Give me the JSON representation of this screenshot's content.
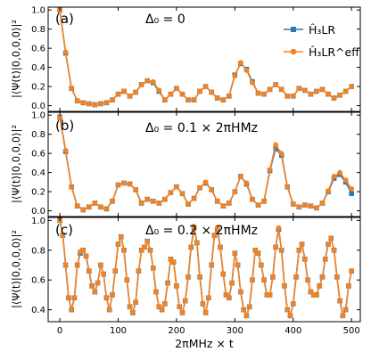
{
  "chart_data": [
    {
      "type": "line",
      "panel_label": "(a)",
      "annotation": "Δ₀ = 0",
      "ylabel": "|⟨Ψ(t)|0,0,0,0⟩|²",
      "xlim": [
        -20,
        515
      ],
      "ylim": [
        -0.06,
        1.03
      ],
      "yticks": [
        0.0,
        0.2,
        0.4,
        0.6,
        0.8,
        1.0
      ],
      "ytick_labels": [
        "0.0",
        "0.2",
        "0.4",
        "0.6",
        "0.8",
        "1.0"
      ],
      "legend": {
        "position": "top-right",
        "entries": [
          "Ĥ₃LR",
          "Ĥ₃LR^eff"
        ]
      },
      "x": [
        0,
        10,
        20,
        30,
        40,
        50,
        60,
        70,
        80,
        90,
        100,
        110,
        120,
        130,
        140,
        150,
        160,
        170,
        180,
        190,
        200,
        210,
        220,
        230,
        240,
        250,
        260,
        270,
        280,
        290,
        300,
        310,
        320,
        330,
        340,
        350,
        360,
        370,
        380,
        390,
        400,
        410,
        420,
        430,
        440,
        450,
        460,
        470,
        480,
        490,
        500
      ],
      "series": [
        {
          "name": "Ĥ₃LR",
          "color": "#2e78ae",
          "marker": "square",
          "values": [
            1.0,
            0.55,
            0.18,
            0.05,
            0.03,
            0.02,
            0.01,
            0.02,
            0.03,
            0.06,
            0.12,
            0.15,
            0.1,
            0.14,
            0.22,
            0.26,
            0.24,
            0.15,
            0.06,
            0.12,
            0.18,
            0.12,
            0.06,
            0.06,
            0.15,
            0.2,
            0.14,
            0.08,
            0.06,
            0.1,
            0.32,
            0.44,
            0.38,
            0.25,
            0.13,
            0.12,
            0.17,
            0.22,
            0.17,
            0.1,
            0.1,
            0.18,
            0.16,
            0.12,
            0.15,
            0.17,
            0.12,
            0.08,
            0.11,
            0.15,
            0.2
          ]
        },
        {
          "name": "Ĥ₃LR^eff",
          "color": "#f5821f",
          "marker": "circle",
          "values": [
            1.0,
            0.56,
            0.18,
            0.05,
            0.03,
            0.02,
            0.01,
            0.02,
            0.03,
            0.06,
            0.12,
            0.15,
            0.1,
            0.14,
            0.22,
            0.26,
            0.25,
            0.16,
            0.06,
            0.12,
            0.18,
            0.12,
            0.06,
            0.06,
            0.15,
            0.2,
            0.14,
            0.08,
            0.06,
            0.1,
            0.31,
            0.45,
            0.37,
            0.24,
            0.13,
            0.12,
            0.17,
            0.22,
            0.17,
            0.1,
            0.1,
            0.18,
            0.16,
            0.12,
            0.15,
            0.17,
            0.12,
            0.08,
            0.11,
            0.15,
            0.2
          ]
        }
      ]
    },
    {
      "type": "line",
      "panel_label": "(b)",
      "annotation": "Δ₀ = 0.1 × 2πHMz",
      "ylabel": "|⟨Ψ(t)|0,0,0,0⟩|²",
      "xlim": [
        -20,
        515
      ],
      "ylim": [
        -0.06,
        1.03
      ],
      "yticks": [
        0.0,
        0.2,
        0.4,
        0.6,
        0.8,
        1.0
      ],
      "ytick_labels": [
        "0.0",
        "0.2",
        "0.4",
        "0.6",
        "0.8",
        "1.0"
      ],
      "x": [
        0,
        10,
        20,
        30,
        40,
        50,
        60,
        70,
        80,
        90,
        100,
        110,
        120,
        130,
        140,
        150,
        160,
        170,
        180,
        190,
        200,
        210,
        220,
        230,
        240,
        250,
        260,
        270,
        280,
        290,
        300,
        310,
        320,
        330,
        340,
        350,
        360,
        370,
        380,
        390,
        400,
        410,
        420,
        430,
        440,
        450,
        460,
        470,
        480,
        490,
        500
      ],
      "series": [
        {
          "name": "Ĥ₃LR",
          "color": "#2e78ae",
          "marker": "square",
          "values": [
            0.98,
            0.62,
            0.25,
            0.05,
            0.01,
            0.04,
            0.08,
            0.04,
            0.02,
            0.1,
            0.27,
            0.29,
            0.28,
            0.22,
            0.08,
            0.12,
            0.1,
            0.08,
            0.12,
            0.19,
            0.25,
            0.18,
            0.07,
            0.13,
            0.24,
            0.29,
            0.22,
            0.1,
            0.05,
            0.08,
            0.2,
            0.36,
            0.28,
            0.12,
            0.06,
            0.1,
            0.42,
            0.65,
            0.58,
            0.25,
            0.07,
            0.04,
            0.06,
            0.05,
            0.03,
            0.08,
            0.2,
            0.34,
            0.38,
            0.3,
            0.18
          ]
        },
        {
          "name": "Ĥ₃LR^eff",
          "color": "#f5821f",
          "marker": "circle",
          "values": [
            0.98,
            0.63,
            0.25,
            0.05,
            0.01,
            0.04,
            0.08,
            0.04,
            0.02,
            0.1,
            0.27,
            0.29,
            0.28,
            0.22,
            0.08,
            0.12,
            0.1,
            0.08,
            0.12,
            0.19,
            0.25,
            0.18,
            0.07,
            0.13,
            0.24,
            0.3,
            0.22,
            0.1,
            0.05,
            0.08,
            0.2,
            0.36,
            0.29,
            0.12,
            0.06,
            0.1,
            0.43,
            0.69,
            0.6,
            0.25,
            0.07,
            0.04,
            0.06,
            0.05,
            0.03,
            0.08,
            0.21,
            0.36,
            0.4,
            0.32,
            0.23
          ]
        }
      ]
    },
    {
      "type": "line",
      "panel_label": "(c)",
      "annotation": "Δ₀ = 0.2 × 2πHMz",
      "ylabel": "|⟨Ψ(t)|0,0,0,0⟩|²",
      "xlabel": "2πMHz × t",
      "xlim": [
        -20,
        515
      ],
      "ylim": [
        0.32,
        1.02
      ],
      "xticks": [
        0,
        100,
        200,
        300,
        400,
        500
      ],
      "xtick_labels": [
        "0",
        "100",
        "200",
        "300",
        "400",
        "500"
      ],
      "yticks": [
        0.4,
        0.6,
        0.8,
        1.0
      ],
      "ytick_labels": [
        "0.4",
        "0.6",
        "0.8",
        "1.0"
      ],
      "x": [
        0,
        5,
        10,
        15,
        20,
        25,
        30,
        35,
        40,
        45,
        50,
        55,
        60,
        65,
        70,
        75,
        80,
        85,
        90,
        95,
        100,
        105,
        110,
        115,
        120,
        125,
        130,
        135,
        140,
        145,
        150,
        155,
        160,
        165,
        170,
        175,
        180,
        185,
        190,
        195,
        200,
        205,
        210,
        215,
        220,
        225,
        230,
        235,
        240,
        245,
        250,
        255,
        260,
        265,
        270,
        275,
        280,
        285,
        290,
        295,
        300,
        305,
        310,
        315,
        320,
        325,
        330,
        335,
        340,
        345,
        350,
        355,
        360,
        365,
        370,
        375,
        380,
        385,
        390,
        395,
        400,
        405,
        410,
        415,
        420,
        425,
        430,
        435,
        440,
        445,
        450,
        455,
        460,
        465,
        470,
        475,
        480,
        485,
        490,
        495,
        500
      ],
      "series": [
        {
          "name": "Ĥ₃LR",
          "color": "#2e78ae",
          "marker": "square",
          "values": [
            1.0,
            0.9,
            0.7,
            0.48,
            0.4,
            0.48,
            0.7,
            0.78,
            0.8,
            0.76,
            0.66,
            0.56,
            0.52,
            0.58,
            0.7,
            0.64,
            0.48,
            0.4,
            0.5,
            0.66,
            0.84,
            0.89,
            0.8,
            0.6,
            0.42,
            0.38,
            0.45,
            0.66,
            0.8,
            0.82,
            0.86,
            0.8,
            0.68,
            0.52,
            0.42,
            0.4,
            0.44,
            0.58,
            0.74,
            0.72,
            0.56,
            0.42,
            0.38,
            0.46,
            0.62,
            0.82,
            0.95,
            0.85,
            0.62,
            0.44,
            0.38,
            0.48,
            0.7,
            0.9,
            0.94,
            0.82,
            0.64,
            0.5,
            0.48,
            0.58,
            0.78,
            0.7,
            0.52,
            0.4,
            0.36,
            0.42,
            0.6,
            0.8,
            0.78,
            0.7,
            0.6,
            0.5,
            0.5,
            0.62,
            0.82,
            0.94,
            0.8,
            0.56,
            0.4,
            0.36,
            0.44,
            0.62,
            0.8,
            0.84,
            0.74,
            0.6,
            0.52,
            0.5,
            0.5,
            0.56,
            0.62,
            0.74,
            0.84,
            0.88,
            0.8,
            0.62,
            0.46,
            0.36,
            0.4,
            0.56,
            0.66
          ]
        },
        {
          "name": "Ĥ₃LR^eff",
          "color": "#f5821f",
          "marker": "circle",
          "values": [
            1.0,
            0.9,
            0.7,
            0.48,
            0.4,
            0.48,
            0.7,
            0.79,
            0.8,
            0.76,
            0.66,
            0.56,
            0.52,
            0.58,
            0.7,
            0.64,
            0.48,
            0.4,
            0.5,
            0.66,
            0.84,
            0.89,
            0.8,
            0.6,
            0.42,
            0.38,
            0.45,
            0.66,
            0.8,
            0.82,
            0.86,
            0.8,
            0.68,
            0.52,
            0.42,
            0.4,
            0.44,
            0.58,
            0.74,
            0.72,
            0.56,
            0.42,
            0.38,
            0.46,
            0.62,
            0.82,
            0.96,
            0.85,
            0.62,
            0.44,
            0.38,
            0.48,
            0.7,
            0.9,
            0.95,
            0.82,
            0.64,
            0.5,
            0.48,
            0.58,
            0.78,
            0.7,
            0.52,
            0.4,
            0.36,
            0.42,
            0.6,
            0.8,
            0.78,
            0.7,
            0.6,
            0.5,
            0.5,
            0.62,
            0.82,
            0.95,
            0.8,
            0.56,
            0.4,
            0.36,
            0.44,
            0.62,
            0.8,
            0.84,
            0.74,
            0.6,
            0.52,
            0.5,
            0.5,
            0.56,
            0.62,
            0.74,
            0.84,
            0.88,
            0.8,
            0.62,
            0.46,
            0.36,
            0.4,
            0.56,
            0.66
          ]
        }
      ]
    }
  ]
}
